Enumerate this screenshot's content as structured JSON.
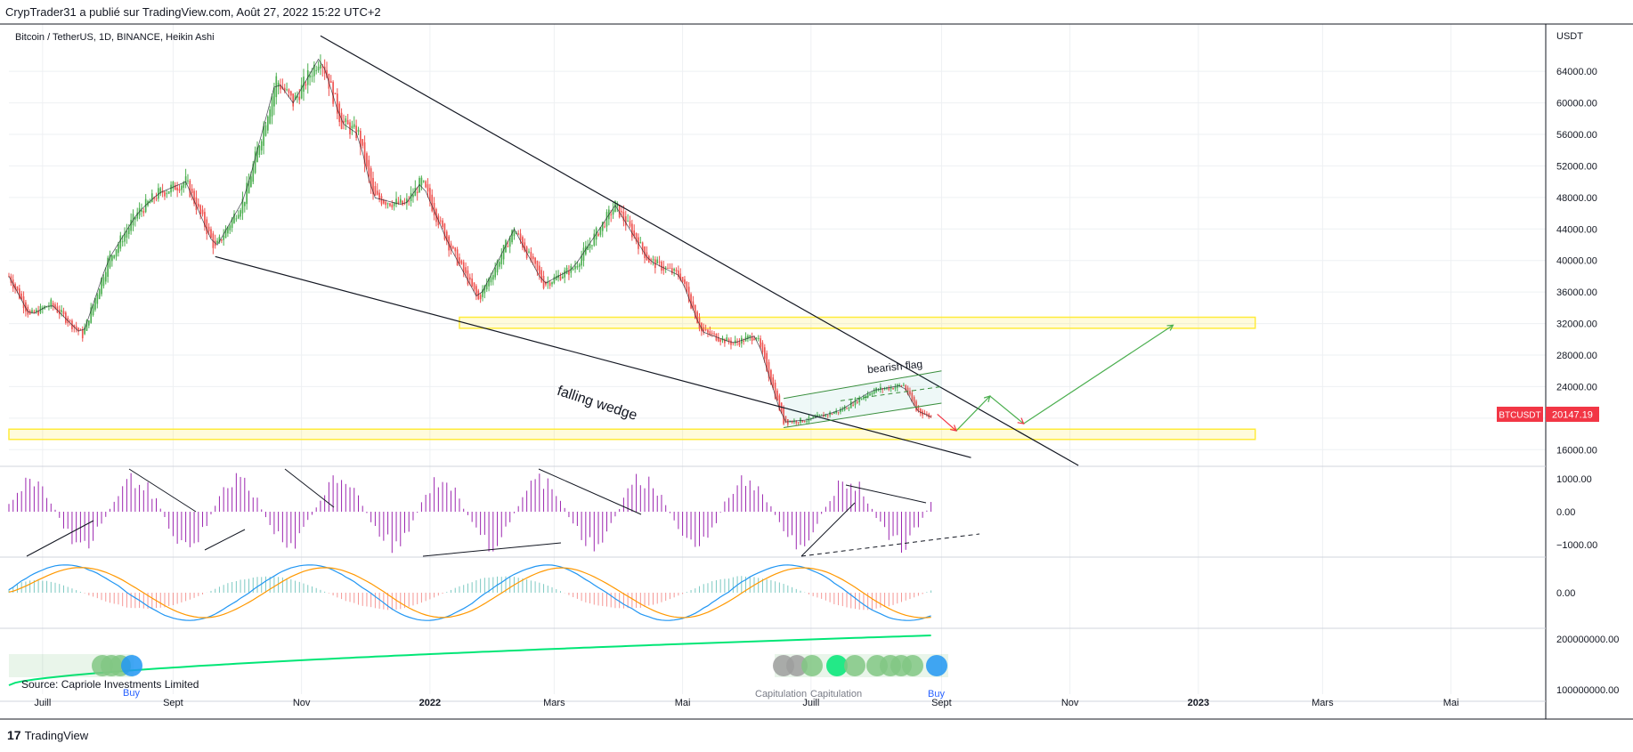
{
  "header": {
    "published": "CrypTrader31 a publié sur TradingView.com, Août 27, 2022 15:22 UTC+2"
  },
  "footer": {
    "brand": "TradingView",
    "logo": "tradingview-logo-icon"
  },
  "colors": {
    "up": "#26a69a",
    "upBar": "#4caf50",
    "down": "#ef5350",
    "zone": "#ffeb3b",
    "hist": "#9c27b0",
    "macd": "#2196f3",
    "signal": "#ff9800",
    "badge": "#f23645"
  },
  "chart_data": [
    {
      "type": "candlestick",
      "title": "Bitcoin / TetherUS, 1D, BINANCE, Heikin Ashi",
      "yunit": "USDT",
      "ylim": [
        14000,
        70000
      ],
      "y_ticks": [
        "64000.00",
        "60000.00",
        "56000.00",
        "52000.00",
        "48000.00",
        "44000.00",
        "40000.00",
        "36000.00",
        "32000.00",
        "28000.00",
        "24000.00",
        "20000.00",
        "16000.00"
      ],
      "x_ticks": [
        "Juill",
        "Sept",
        "Nov",
        "2022",
        "Mars",
        "Mai",
        "Juill",
        "Sept",
        "Nov",
        "2023",
        "Mars",
        "Mai"
      ],
      "x_range": [
        "2021-06-15",
        "2023-06-15"
      ],
      "price_label": {
        "symbol": "BTCUSDT",
        "value": "20147.19"
      },
      "close_series": [
        [
          "2021-06-15",
          38000
        ],
        [
          "2021-06-25",
          33000
        ],
        [
          "2021-07-05",
          34500
        ],
        [
          "2021-07-20",
          30500
        ],
        [
          "2021-08-01",
          40000
        ],
        [
          "2021-08-15",
          46000
        ],
        [
          "2021-08-25",
          48500
        ],
        [
          "2021-09-07",
          50000
        ],
        [
          "2021-09-21",
          41500
        ],
        [
          "2021-10-05",
          48000
        ],
        [
          "2021-10-20",
          63000
        ],
        [
          "2021-10-28",
          60000
        ],
        [
          "2021-11-10",
          66000
        ],
        [
          "2021-11-20",
          57500
        ],
        [
          "2021-11-28",
          56000
        ],
        [
          "2021-12-05",
          48000
        ],
        [
          "2021-12-20",
          47000
        ],
        [
          "2021-12-28",
          50000
        ],
        [
          "2022-01-10",
          42000
        ],
        [
          "2022-01-24",
          35000
        ],
        [
          "2022-02-10",
          44000
        ],
        [
          "2022-02-24",
          37000
        ],
        [
          "2022-03-10",
          39000
        ],
        [
          "2022-03-30",
          47000
        ],
        [
          "2022-04-15",
          40000
        ],
        [
          "2022-04-30",
          38000
        ],
        [
          "2022-05-10",
          31000
        ],
        [
          "2022-05-25",
          29500
        ],
        [
          "2022-06-05",
          30500
        ],
        [
          "2022-06-18",
          19500
        ],
        [
          "2022-06-30",
          19800
        ],
        [
          "2022-07-15",
          21000
        ],
        [
          "2022-07-30",
          23500
        ],
        [
          "2022-08-14",
          24200
        ],
        [
          "2022-08-20",
          21000
        ],
        [
          "2022-08-27",
          20147
        ]
      ],
      "zones": [
        {
          "from": "2022-01-15",
          "to": "2023-01-28",
          "low": 31400,
          "high": 32800
        },
        {
          "from": "2021-06-15",
          "to": "2023-01-28",
          "low": 17300,
          "high": 18600
        }
      ],
      "trendlines": [
        {
          "from": [
            "2021-11-10",
            68500
          ],
          "to": [
            "2022-11-05",
            14000
          ]
        },
        {
          "from": [
            "2021-09-21",
            40500
          ],
          "to": [
            "2022-09-15",
            15000
          ]
        }
      ],
      "flag_channel": {
        "upper": [
          [
            "2022-06-18",
            22500
          ],
          [
            "2022-09-01",
            26000
          ]
        ],
        "lower": [
          [
            "2022-06-18",
            18800
          ],
          [
            "2022-09-01",
            21900
          ]
        ],
        "mid": [
          [
            "2022-07-15",
            22200
          ],
          [
            "2022-09-01",
            24000
          ]
        ]
      },
      "projection_red": [
        [
          "2022-08-30",
          20500
        ],
        [
          "2022-09-08",
          18400
        ]
      ],
      "projection_green": [
        [
          "2022-09-08",
          18400
        ],
        [
          "2022-09-24",
          22800
        ],
        [
          "2022-10-10",
          19300
        ],
        [
          "2022-12-20",
          31800
        ]
      ],
      "annotations": [
        {
          "text": "falling wedge",
          "at": [
            "2022-03-02",
            23000
          ],
          "angle": 18
        },
        {
          "text": "bearish flag",
          "at": [
            "2022-07-28",
            25700
          ],
          "angle": -6
        }
      ]
    },
    {
      "type": "histogram",
      "ylim": [
        -1350,
        1350
      ],
      "y_ticks": [
        "1000.00",
        "0.00",
        "−1000.00"
      ]
    },
    {
      "type": "line",
      "y_ticks": [
        "0.00"
      ],
      "series": []
    },
    {
      "type": "line",
      "y_ticks": [
        "200000000.00",
        "100000000.00"
      ],
      "text_labels": [
        "Source: Capriole Investments Limited",
        "Buy",
        "Capitulation",
        "Capitulation",
        "Buy"
      ]
    }
  ]
}
